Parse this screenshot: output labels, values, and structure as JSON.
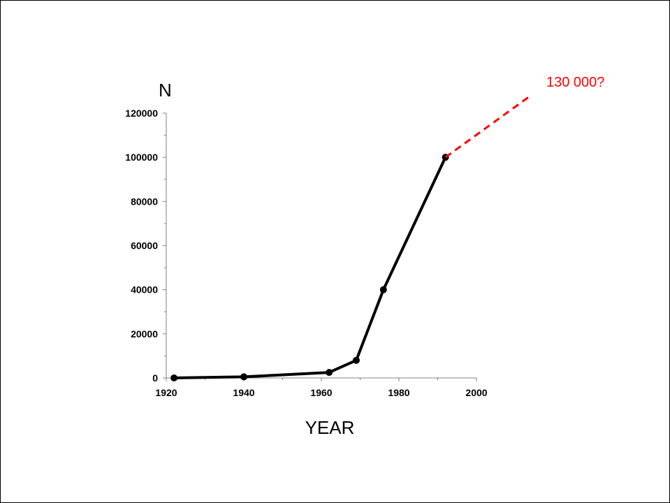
{
  "chart_data": {
    "type": "line",
    "title": "",
    "xlabel": "YEAR",
    "ylabel": "N",
    "xlim": [
      1920,
      2000
    ],
    "ylim": [
      0,
      120000
    ],
    "x_ticks": [
      1920,
      1940,
      1960,
      1980,
      2000
    ],
    "y_ticks": [
      0,
      20000,
      40000,
      60000,
      80000,
      100000,
      120000
    ],
    "grid": false,
    "series": [
      {
        "x": [
          1922,
          1940,
          1962,
          1969,
          1976,
          1992
        ],
        "y": [
          0,
          500,
          2500,
          8000,
          40000,
          100000
        ],
        "color": "#000000"
      }
    ],
    "projection": {
      "from": [
        1992,
        100000
      ],
      "to": [
        2014,
        128000
      ],
      "color": "#ff0000",
      "label": "130 000?"
    }
  }
}
